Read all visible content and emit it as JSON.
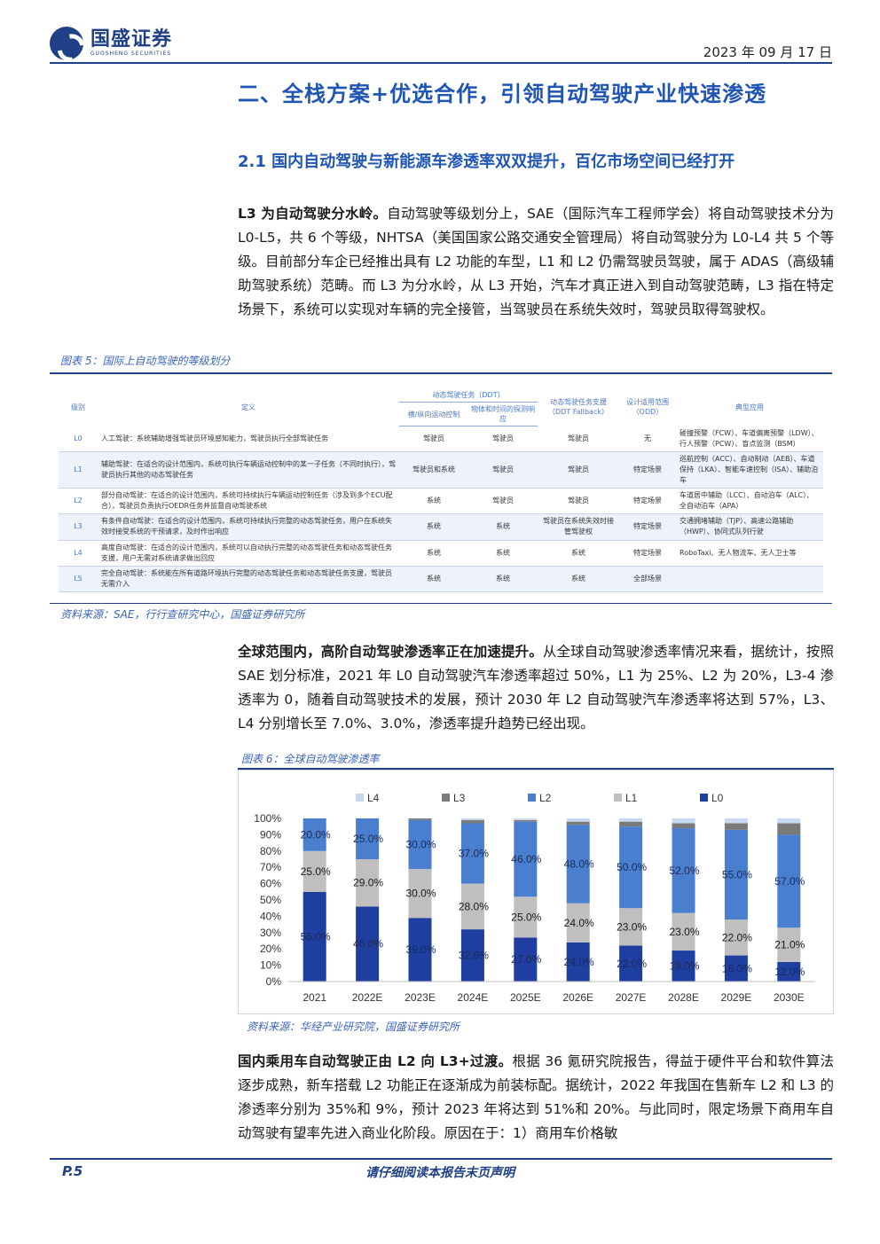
{
  "header": {
    "logo_cn": "国盛证券",
    "logo_en": "GUOSHENG SECURITIES",
    "date": "2023 年 09 月 17 日"
  },
  "section_title": "二、全栈方案+优选合作，引领自动驾驶产业快速渗透",
  "subsection_title": "2.1 国内自动驾驶与新能源车渗透率双双提升，百亿市场空间已经打开",
  "para1": {
    "lead": "L3 为自动驾驶分水岭。",
    "text": "自动驾驶等级划分上，SAE（国际汽车工程师学会）将自动驾驶技术分为 L0-L5，共 6 个等级，NHTSA（美国国家公路交通安全管理局）将自动驾驶分为 L0-L4 共 5 个等级。目前部分车企已经推出具有 L2 功能的车型，L1 和 L2 仍需驾驶员驾驶，属于 ADAS（高级辅助驾驶系统）范畴。而 L3 为分水岭，从 L3 开始，汽车才真正进入到自动驾驶范畴，L3 指在特定场景下，系统可以实现对车辆的完全接管，当驾驶员在系统失效时，驾驶员取得驾驶权。"
  },
  "fig5": {
    "caption": "图表 5：国际上自动驾驶的等级划分",
    "source": "资料来源：SAE，行行查研究中心，国盛证券研究所",
    "headers": {
      "level": "级别",
      "definition": "定义",
      "ddt": "动态驾驶任务（DDT）",
      "ddt_sub1": "横/纵向运动控制",
      "ddt_sub2": "物体和时间的探测响应",
      "fallback": "动态驾驶任务支援（DDT Fallback）",
      "odd": "设计适用范围（ODD）",
      "apps": "典型应用"
    },
    "rows": [
      {
        "level": "L0",
        "definition": "人工驾驶：系统辅助增强驾驶员环境感知能力，驾驶员执行全部驾驶任务",
        "motion": "驾驶员",
        "detect": "驾驶员",
        "fallback": "驾驶员",
        "odd": "无",
        "apps": "碰撞预警（FCW）、车道偏离预警（LDW）、行人预警（PCW）、盲点监测（BSM）"
      },
      {
        "level": "L1",
        "definition": "辅助驾驶：在适合的设计范围内，系统可执行车辆运动控制中的某一子任务（不同时执行），驾驶员执行其他的动态驾驶任务",
        "motion": "驾驶员和系统",
        "detect": "驾驶员",
        "fallback": "驾驶员",
        "odd": "特定场景",
        "apps": "巡航控制（ACC）、自动制动（AEB）、车道保持（LKA）、智能车速控制（ISA）、辅助泊车"
      },
      {
        "level": "L2",
        "definition": "部分自动驾驶：在适合的设计范围内，系统可持续执行车辆运动控制任务（涉及到多个ECU配合），驾驶员负责执行OEDR任务并监督自动驾驶系统",
        "motion": "系统",
        "detect": "驾驶员",
        "fallback": "驾驶员",
        "odd": "特定场景",
        "apps": "车道居中辅助（LCC）、自动泊车（ALC）、全自动泊车（APA）"
      },
      {
        "level": "L3",
        "definition": "有条件自动驾驶：在适合的设计范围内，系统可持续执行完整的动态驾驶任务，用户在系统失效时接受系统的干预请求，及时作出响应",
        "motion": "系统",
        "detect": "系统",
        "fallback": "驾驶员在系统失效时接管驾驶权",
        "odd": "特定场景",
        "apps": "交通拥堵辅助（TJP）、高速公路辅助（HWP）、协同式队列行驶"
      },
      {
        "level": "L4",
        "definition": "高度自动驾驶：在适合的设计范围内，系统可以自动执行完整的动态驾驶任务和动态驾驶任务支援，用户无需对系统请求做出回应",
        "motion": "系统",
        "detect": "系统",
        "fallback": "系统",
        "odd": "特定场景",
        "apps": "RoboTaxi、无人物流车、无人卫士等"
      },
      {
        "level": "L5",
        "definition": "完全自动驾驶：系统能在所有道路环境执行完整的动态驾驶任务和动态驾驶任务支援，驾驶员无需介入",
        "motion": "系统",
        "detect": "系统",
        "fallback": "系统",
        "odd": "全部场景",
        "apps": ""
      }
    ]
  },
  "para2": {
    "lead": "全球范围内，高阶自动驾驶渗透率正在加速提升。",
    "text": "从全球自动驾驶渗透率情况来看，据统计，按照 SAE 划分标准，2021 年 L0 自动驾驶汽车渗透率超过 50%，L1 为 25%、L2 为 20%，L3-4 渗透率为 0，随着自动驾驶技术的发展，预计 2030 年 L2 自动驾驶汽车渗透率将达到 57%，L3、L4 分别增长至 7.0%、3.0%，渗透率提升趋势已经出现。"
  },
  "fig6": {
    "caption": "图表 6：全球自动驾驶渗透率",
    "source": "资料来源：华经产业研究院，国盛证券研究所"
  },
  "chart_data": {
    "type": "bar",
    "stacked": true,
    "categories": [
      "2021",
      "2022E",
      "2023E",
      "2024E",
      "2025E",
      "2026E",
      "2027E",
      "2028E",
      "2029E",
      "2030E"
    ],
    "series": [
      {
        "name": "L0",
        "color": "#1f3fa0",
        "values": [
          55,
          46,
          39,
          32,
          27,
          24,
          22,
          19,
          16,
          12
        ]
      },
      {
        "name": "L1",
        "color": "#bfbfbf",
        "values": [
          25,
          29,
          30,
          28,
          25,
          24,
          23,
          23,
          22,
          21
        ]
      },
      {
        "name": "L2",
        "color": "#4a7fd0",
        "values": [
          20,
          25,
          30,
          37,
          46,
          48,
          50,
          52,
          55,
          57
        ]
      },
      {
        "name": "L3",
        "color": "#7a7a7a",
        "values": [
          0,
          0,
          1,
          2,
          1,
          2,
          3,
          3,
          4,
          7
        ]
      },
      {
        "name": "L4",
        "color": "#c7d9f2",
        "values": [
          0,
          0,
          0,
          1,
          1,
          2,
          2,
          3,
          3,
          3
        ]
      }
    ],
    "value_labels": {
      "L0": [
        "55.0%",
        "46.0%",
        "39.0%",
        "32.0%",
        "27.0%",
        "24.0%",
        "22.0%",
        "19.0%",
        "16.0%",
        "12.0%"
      ],
      "L1": [
        "25.0%",
        "29.0%",
        "30.0%",
        "28.0%",
        "25.0%",
        "24.0%",
        "23.0%",
        "23.0%",
        "22.0%",
        "21.0%"
      ],
      "L2": [
        "20.0%",
        "25.0%",
        "30.0%",
        "37.0%",
        "46.0%",
        "48.0%",
        "50.0%",
        "52.0%",
        "55.0%",
        "57.0%"
      ]
    },
    "legend_order": [
      "L4",
      "L3",
      "L2",
      "L1",
      "L0"
    ],
    "legend_position": "top",
    "yticks": [
      "0%",
      "10%",
      "20%",
      "30%",
      "40%",
      "50%",
      "60%",
      "70%",
      "80%",
      "90%",
      "100%"
    ],
    "ylim": [
      0,
      100
    ],
    "grid": false
  },
  "para3": {
    "lead": "国内乘用车自动驾驶正由 L2 向 L3+过渡。",
    "text": "根据 36 氪研究院报告，得益于硬件平台和软件算法逐步成熟，新车搭载 L2 功能正在逐渐成为前装标配。据统计，2022 年我国在售新车 L2 和 L3 的渗透率分别为 35%和 9%，预计 2023 年将达到 51%和 20%。与此同时，限定场景下商用车自动驾驶有望率先进入商业化阶段。原因在于：1）商用车价格敏"
  },
  "footer": {
    "page": "P.5",
    "note": "请仔细阅读本报告末页声明"
  }
}
